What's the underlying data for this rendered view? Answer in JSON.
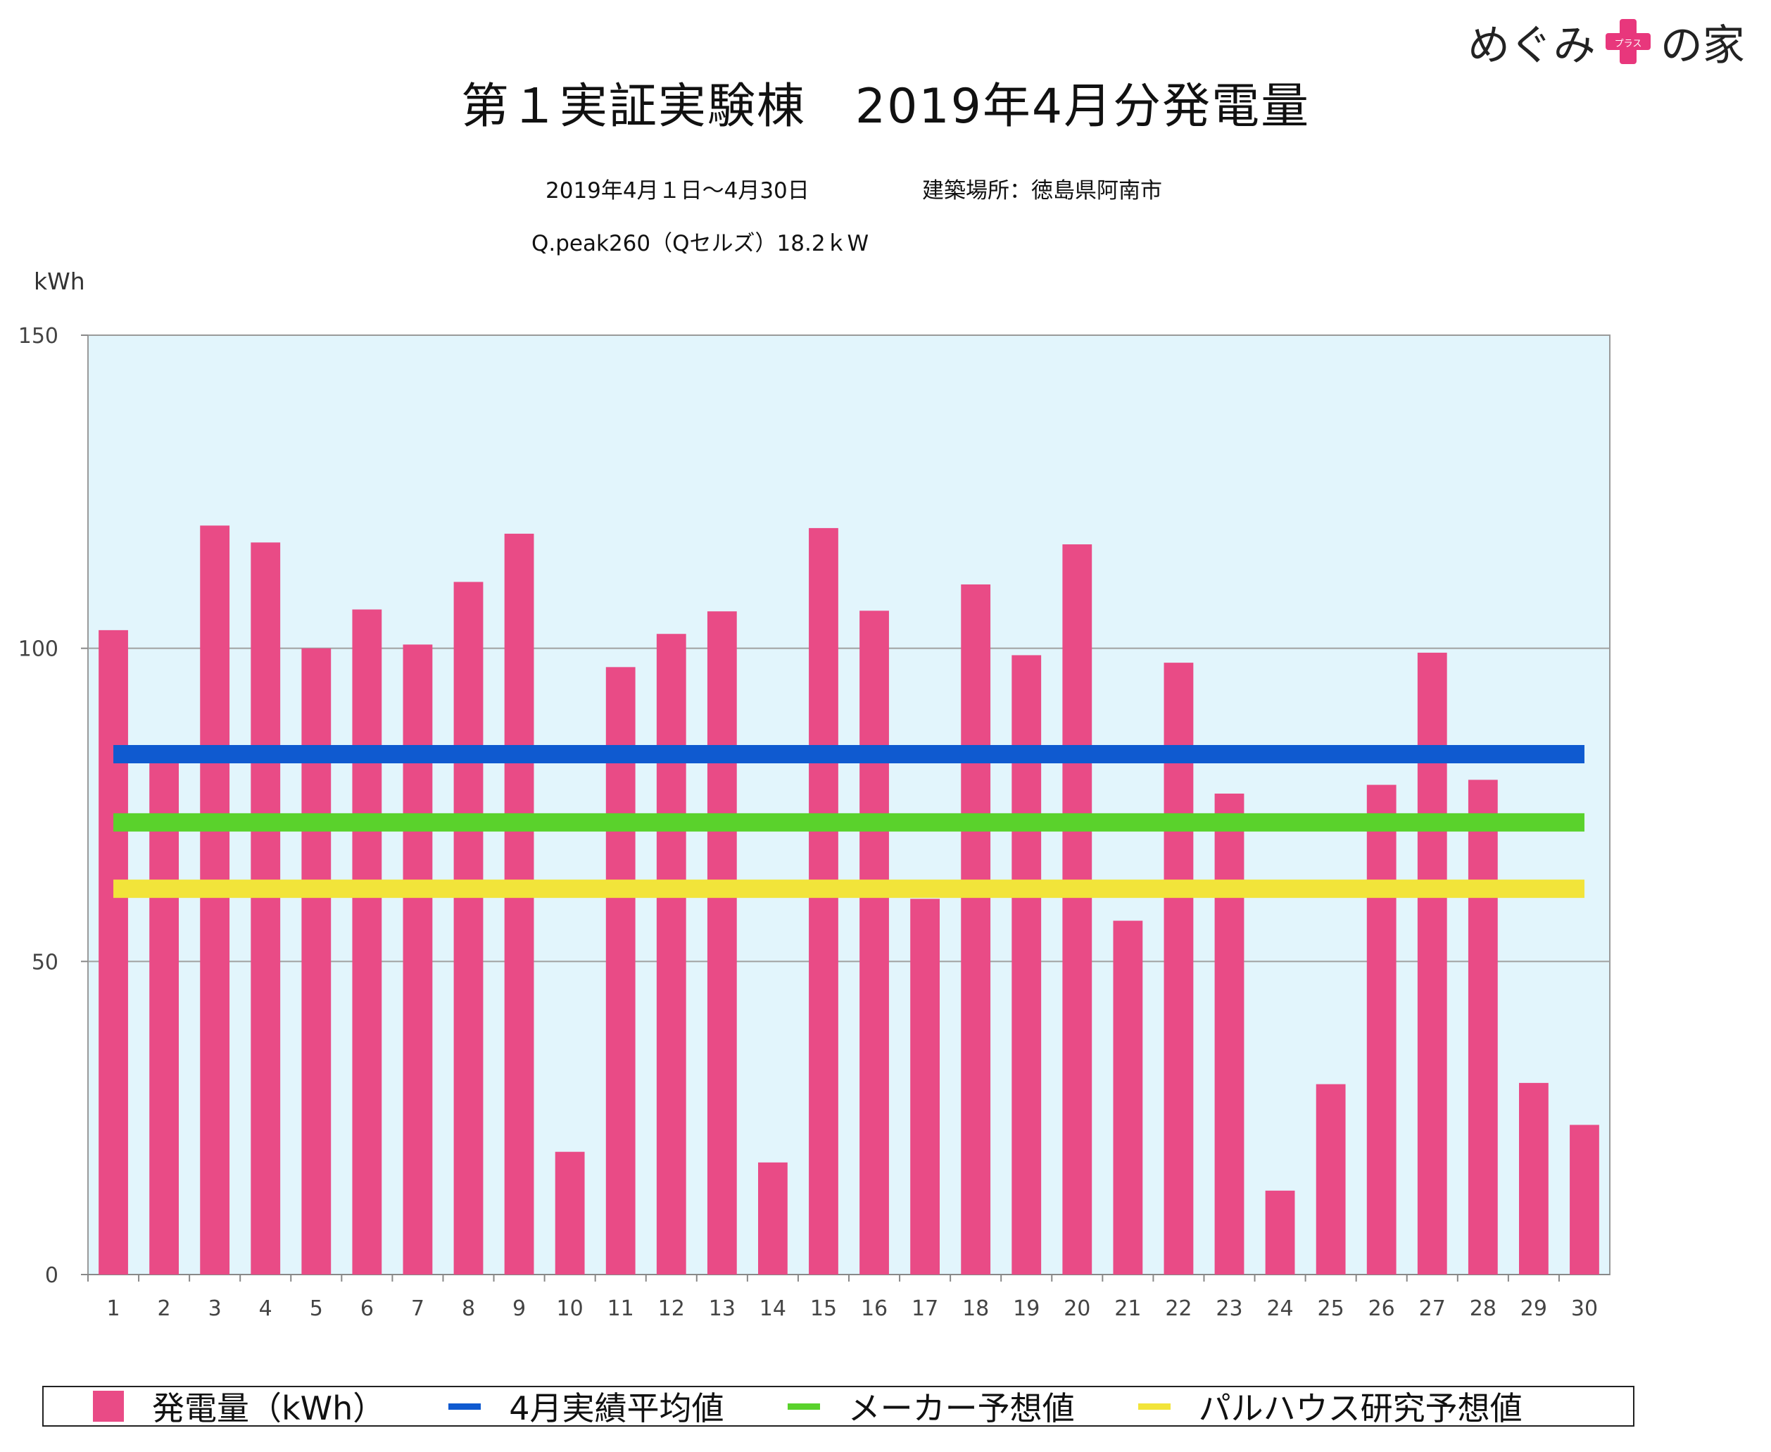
{
  "brand": {
    "text_before": "めぐみ",
    "plus_label": "プラス",
    "text_after": "の家",
    "plus_color": "#e8377c"
  },
  "header": {
    "title": "第１実証実験棟　2019年4月分発電量",
    "period": "2019年4月１日〜4月30日",
    "location": "建築場所：徳島県阿南市",
    "panel": "Q.peak260（Qセルズ）18.2ｋW"
  },
  "chart_data": {
    "type": "bar",
    "ylabel": "kWh",
    "ylim": [
      0,
      150
    ],
    "yticks": [
      0,
      50,
      100,
      150
    ],
    "grid": true,
    "legend_position": "bottom",
    "categories": [
      "1",
      "2",
      "3",
      "4",
      "5",
      "6",
      "7",
      "8",
      "9",
      "10",
      "11",
      "12",
      "13",
      "14",
      "15",
      "16",
      "17",
      "18",
      "19",
      "20",
      "21",
      "22",
      "23",
      "24",
      "25",
      "26",
      "27",
      "28",
      "29",
      "30"
    ],
    "series": [
      {
        "name": "発電量（kWh）",
        "type": "bar",
        "color": "#e94b86",
        "values": [
          102.9,
          82,
          119.6,
          116.9,
          100,
          106.2,
          100.6,
          110.6,
          118.3,
          19.6,
          97,
          102.3,
          105.9,
          17.9,
          119.2,
          106,
          60,
          110.2,
          98.9,
          116.6,
          56.5,
          97.7,
          76.8,
          13.4,
          30.4,
          78.2,
          99.3,
          79,
          30.6,
          23.9
        ]
      },
      {
        "name": "4月実績平均値",
        "type": "line",
        "color": "#0f5ad0",
        "value": 83.1
      },
      {
        "name": "メーカー予想値",
        "type": "line",
        "color": "#5ad22c",
        "value": 72.2
      },
      {
        "name": "パルハウス研究予想値",
        "type": "line",
        "color": "#f2e43a",
        "value": 61.6
      }
    ],
    "plot_background": "#e2f5fc"
  }
}
